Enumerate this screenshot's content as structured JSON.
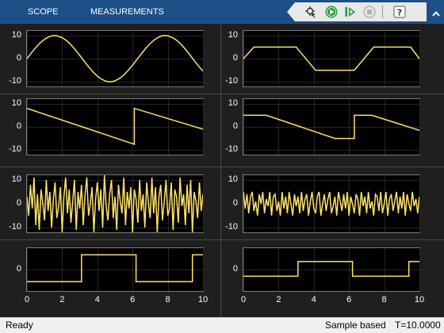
{
  "toolstrip": {
    "tabs": [
      {
        "label": "SCOPE"
      },
      {
        "label": "MEASUREMENTS"
      }
    ],
    "quick_access": [
      {
        "icon": "signal-highlight-icon"
      },
      {
        "icon": "run-icon"
      },
      {
        "icon": "step-forward-icon"
      },
      {
        "icon": "stop-icon"
      },
      {
        "icon": "help-icon"
      },
      {
        "icon": "expand-collapse-icon"
      }
    ],
    "accent_color": "#1c4f86"
  },
  "trace_color": "#ffe26b",
  "chart_data": {
    "type": "line",
    "x_ticks": [
      "0",
      "2",
      "4",
      "6",
      "8",
      "10"
    ],
    "xlim": [
      0,
      10
    ],
    "panels": [
      {
        "name": "sine",
        "ylim": [
          -12,
          12
        ],
        "y_ticks": [
          "10",
          "0",
          "-10"
        ],
        "y_tick_values": [
          10,
          0,
          -10
        ],
        "x": [
          0,
          0.25,
          0.5,
          0.75,
          1,
          1.25,
          1.5,
          1.75,
          2,
          2.25,
          2.5,
          2.75,
          3,
          3.25,
          3.5,
          3.75,
          4,
          4.25,
          4.5,
          4.75,
          5,
          5.25,
          5.5,
          5.75,
          6,
          6.25,
          6.5,
          6.75,
          7,
          7.25,
          7.5,
          7.75,
          8,
          8.25,
          8.5,
          8.75,
          9,
          9.25,
          9.5,
          9.75,
          10
        ],
        "y": [
          0,
          2.5,
          4.8,
          6.8,
          8.4,
          9.5,
          10,
          9.8,
          9.1,
          7.8,
          6,
          3.8,
          1.4,
          -1.1,
          -3.5,
          -5.7,
          -7.6,
          -8.9,
          -9.8,
          -10,
          -9.6,
          -8.6,
          -7.1,
          -5.1,
          -2.8,
          -0.3,
          2.1,
          4.5,
          6.5,
          8.2,
          9.4,
          10,
          9.9,
          9.2,
          8,
          6.2,
          4.1,
          1.7,
          -0.8,
          -3.2,
          -5.4
        ]
      },
      {
        "name": "trapezoid",
        "ylim": [
          -12,
          12
        ],
        "y_ticks": [
          "10",
          "0",
          "-10"
        ],
        "y_tick_values": [
          10,
          0,
          -10
        ],
        "x": [
          0,
          0.6,
          3,
          4.1,
          6.3,
          7.4,
          9.5,
          10
        ],
        "y": [
          0,
          5,
          5,
          -5,
          -5,
          5,
          5,
          0
        ]
      },
      {
        "name": "sawtooth",
        "ylim": [
          -12,
          12
        ],
        "y_ticks": [
          "10",
          "0",
          "-10"
        ],
        "y_tick_values": [
          10,
          0,
          -10
        ],
        "x": [
          0,
          6.1,
          6.1,
          10
        ],
        "y": [
          8,
          -7.5,
          8,
          -1
        ]
      },
      {
        "name": "clipped-sawtooth",
        "ylim": [
          -12,
          12
        ],
        "y_ticks": [
          "10",
          "0",
          "-10"
        ],
        "y_tick_values": [
          10,
          0,
          -10
        ],
        "x": [
          0,
          1.3,
          5.2,
          6.3,
          6.3,
          7.3,
          10
        ],
        "y": [
          5,
          5,
          -5,
          -5,
          5,
          5,
          -1.5
        ]
      },
      {
        "name": "random-wide",
        "ylim": [
          -12,
          12
        ],
        "y_ticks": [
          "10",
          "0",
          "-10"
        ],
        "y_tick_values": [
          10,
          0,
          -10
        ],
        "x": [
          0,
          0.1,
          0.2,
          0.3,
          0.4,
          0.5,
          0.6,
          0.7,
          0.8,
          0.9,
          1,
          1.1,
          1.2,
          1.3,
          1.4,
          1.5,
          1.6,
          1.7,
          1.8,
          1.9,
          2,
          2.1,
          2.2,
          2.3,
          2.4,
          2.5,
          2.6,
          2.7,
          2.8,
          2.9,
          3,
          3.1,
          3.2,
          3.3,
          3.4,
          3.5,
          3.6,
          3.7,
          3.8,
          3.9,
          4,
          4.1,
          4.2,
          4.3,
          4.4,
          4.5,
          4.6,
          4.7,
          4.8,
          4.9,
          5,
          5.1,
          5.2,
          5.3,
          5.4,
          5.5,
          5.6,
          5.7,
          5.8,
          5.9,
          6,
          6.1,
          6.2,
          6.3,
          6.4,
          6.5,
          6.6,
          6.7,
          6.8,
          6.9,
          7,
          7.1,
          7.2,
          7.3,
          7.4,
          7.5,
          7.6,
          7.7,
          7.8,
          7.9,
          8,
          8.1,
          8.2,
          8.3,
          8.4,
          8.5,
          8.6,
          8.7,
          8.8,
          8.9,
          9,
          9.1,
          9.2,
          9.3,
          9.4,
          9.5,
          9.6,
          9.7,
          9.8,
          9.9,
          10
        ],
        "y": [
          3,
          -5,
          8,
          -2,
          11,
          -9,
          4,
          -11,
          6,
          0,
          -7,
          10,
          -3,
          5,
          -10,
          2,
          9,
          -6,
          -1,
          7,
          -12,
          3,
          11,
          -4,
          6,
          -8,
          1,
          10,
          -11,
          5,
          -2,
          8,
          -9,
          4,
          11,
          -5,
          0,
          7,
          -12,
          2,
          9,
          -3,
          6,
          -10,
          12,
          -1,
          -7,
          4,
          10,
          -6,
          3,
          -11,
          8,
          1,
          -4,
          11,
          -9,
          5,
          -2,
          7,
          -12,
          6,
          2,
          -8,
          10,
          -3,
          4,
          -10,
          9,
          0,
          -6,
          11,
          -4,
          7,
          -12,
          3,
          8,
          -7,
          1,
          10,
          -5,
          -2,
          9,
          -11,
          6,
          3,
          -8,
          11,
          -1,
          4,
          -9,
          8,
          -4,
          10,
          -12,
          5,
          1,
          -6,
          9,
          -3,
          4
        ]
      },
      {
        "name": "random-narrow",
        "ylim": [
          -12,
          12
        ],
        "y_ticks": [
          "10",
          "0",
          "-10"
        ],
        "y_tick_values": [
          10,
          0,
          -10
        ],
        "x": [
          0,
          0.1,
          0.2,
          0.3,
          0.4,
          0.5,
          0.6,
          0.7,
          0.8,
          0.9,
          1,
          1.1,
          1.2,
          1.3,
          1.4,
          1.5,
          1.6,
          1.7,
          1.8,
          1.9,
          2,
          2.1,
          2.2,
          2.3,
          2.4,
          2.5,
          2.6,
          2.7,
          2.8,
          2.9,
          3,
          3.1,
          3.2,
          3.3,
          3.4,
          3.5,
          3.6,
          3.7,
          3.8,
          3.9,
          4,
          4.1,
          4.2,
          4.3,
          4.4,
          4.5,
          4.6,
          4.7,
          4.8,
          4.9,
          5,
          5.1,
          5.2,
          5.3,
          5.4,
          5.5,
          5.6,
          5.7,
          5.8,
          5.9,
          6,
          6.1,
          6.2,
          6.3,
          6.4,
          6.5,
          6.6,
          6.7,
          6.8,
          6.9,
          7,
          7.1,
          7.2,
          7.3,
          7.4,
          7.5,
          7.6,
          7.7,
          7.8,
          7.9,
          8,
          8.1,
          8.2,
          8.3,
          8.4,
          8.5,
          8.6,
          8.7,
          8.8,
          8.9,
          9,
          9.1,
          9.2,
          9.3,
          9.4,
          9.5,
          9.6,
          9.7,
          9.8,
          9.9,
          10
        ],
        "y": [
          5,
          -2,
          4,
          -4,
          3,
          5,
          -3,
          1,
          -5,
          4,
          0,
          5,
          -4,
          2,
          -1,
          5,
          -5,
          3,
          4,
          -3,
          1,
          -5,
          5,
          -2,
          3,
          -4,
          5,
          0,
          -5,
          4,
          -1,
          3,
          -4,
          5,
          -3,
          2,
          4,
          -5,
          1,
          5,
          -2,
          -4,
          3,
          5,
          -5,
          0,
          4,
          -3,
          2,
          5,
          -4,
          -1,
          3,
          -5,
          5,
          1,
          -3,
          4,
          -2,
          5,
          -5,
          3,
          0,
          -4,
          4,
          2,
          -5,
          5,
          -1,
          3,
          -4,
          5,
          -2,
          1,
          -5,
          4,
          3,
          -3,
          5,
          -4,
          0,
          5,
          -5,
          2,
          4,
          -3,
          1,
          5,
          -4,
          3,
          -2,
          5,
          -5,
          4,
          0,
          -3,
          5,
          -1,
          2,
          -4,
          3
        ]
      },
      {
        "name": "square-wide",
        "ylim": [
          -8,
          8
        ],
        "y_ticks": [
          "0"
        ],
        "y_tick_values": [
          0
        ],
        "x": [
          0,
          3.1,
          3.1,
          6.2,
          6.2,
          9.4,
          9.4,
          10
        ],
        "y": [
          -4.5,
          -4.5,
          5.5,
          5.5,
          -4.5,
          -4.5,
          5.5,
          5.5
        ]
      },
      {
        "name": "square-narrow",
        "ylim": [
          -8,
          8
        ],
        "y_ticks": [
          "0"
        ],
        "y_tick_values": [
          0
        ],
        "x": [
          0,
          3.1,
          3.1,
          6.2,
          6.2,
          9.4,
          9.4,
          10
        ],
        "y": [
          -2.5,
          -2.5,
          3,
          3,
          -2.5,
          -2.5,
          3,
          3
        ]
      }
    ]
  },
  "status": {
    "left": "Ready",
    "mode": "Sample based",
    "time": "T=10.0000"
  }
}
